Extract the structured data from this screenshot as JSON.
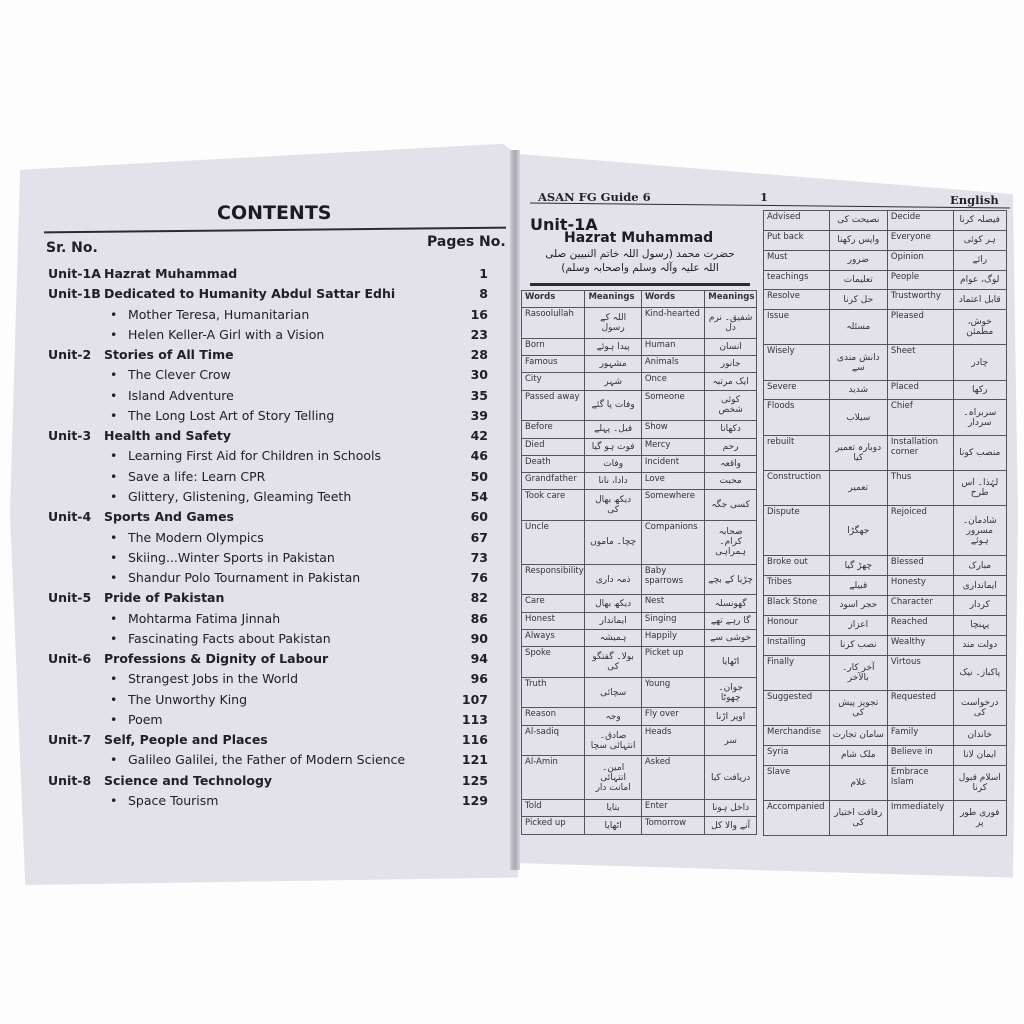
{
  "left_page": {
    "title": "CONTENTS",
    "col_sr": "Sr. No.",
    "col_pages": "Pages No.",
    "entries": [
      {
        "unit": "Unit-1A",
        "title": "Hazrat Muhammad",
        "page": "1"
      },
      {
        "unit": "Unit-1B",
        "title": "Dedicated to Humanity Abdul Sattar Edhi",
        "page": "8"
      },
      {
        "unit": "",
        "title": "Mother Teresa, Humanitarian",
        "page": "16"
      },
      {
        "unit": "",
        "title": "Helen Keller-A Girl with a Vision",
        "page": "23"
      },
      {
        "unit": "Unit-2",
        "title": "Stories of All Time",
        "page": "28"
      },
      {
        "unit": "",
        "title": "The Clever Crow",
        "page": "30"
      },
      {
        "unit": "",
        "title": "Island Adventure",
        "page": "35"
      },
      {
        "unit": "",
        "title": "The Long Lost Art of Story Telling",
        "page": "39"
      },
      {
        "unit": "Unit-3",
        "title": "Health and Safety",
        "page": "42"
      },
      {
        "unit": "",
        "title": "Learning First Aid for Children in Schools",
        "page": "46"
      },
      {
        "unit": "",
        "title": "Save a life: Learn CPR",
        "page": "50"
      },
      {
        "unit": "",
        "title": "Glittery, Glistening, Gleaming Teeth",
        "page": "54"
      },
      {
        "unit": "Unit-4",
        "title": "Sports And Games",
        "page": "60"
      },
      {
        "unit": "",
        "title": "The Modern Olympics",
        "page": "67"
      },
      {
        "unit": "",
        "title": "Skiing...Winter Sports in Pakistan",
        "page": "73"
      },
      {
        "unit": "",
        "title": "Shandur Polo Tournament in Pakistan",
        "page": "76"
      },
      {
        "unit": "Unit-5",
        "title": "Pride of Pakistan",
        "page": "82"
      },
      {
        "unit": "",
        "title": "Mohtarma Fatima Jinnah",
        "page": "86"
      },
      {
        "unit": "",
        "title": "Fascinating Facts about Pakistan",
        "page": "90"
      },
      {
        "unit": "Unit-6",
        "title": "Professions & Dignity of Labour",
        "page": "94"
      },
      {
        "unit": "",
        "title": "Strangest Jobs in the World",
        "page": "96"
      },
      {
        "unit": "",
        "title": "The Unworthy King",
        "page": "107"
      },
      {
        "unit": "",
        "title": "Poem",
        "page": "113"
      },
      {
        "unit": "Unit-7",
        "title": "Self, People and Places",
        "page": "116"
      },
      {
        "unit": "",
        "title": "Galileo Galilei, the Father of Modern Science",
        "page": "121"
      },
      {
        "unit": "Unit-8",
        "title": "Science and Technology",
        "page": "125"
      },
      {
        "unit": "",
        "title": "Space Tourism",
        "page": "129"
      }
    ]
  },
  "right_page": {
    "book_title": "ASAN FG Guide 6",
    "page_number": "1",
    "subject": "English",
    "unit": "Unit-1A",
    "lesson_title": "Hazrat Muhammad",
    "urdu_title": "حضرت محمد (رسول اللہ خاتم النبیین صلی اللہ علیہ وآلہ وسلم واصحابہ وسلم)",
    "headers": [
      "Words",
      "Meanings",
      "Words",
      "Meanings"
    ],
    "vocab_left": [
      [
        "Rasoolullah",
        "اللہ کے رسول",
        "Kind-hearted",
        "شفیق۔ نرم دل"
      ],
      [
        "Born",
        "پیدا ہوئے",
        "Human",
        "انسان"
      ],
      [
        "Famous",
        "مشہور",
        "Animals",
        "جانور"
      ],
      [
        "City",
        "شہر",
        "Once",
        "ایک مرتبہ"
      ],
      [
        "Passed away",
        "وفات پا گئے",
        "Someone",
        "کوئی شخص"
      ],
      [
        "Before",
        "قبل۔ پہلے",
        "Show",
        "دکھانا"
      ],
      [
        "Died",
        "فوت ہو گیا",
        "Mercy",
        "رحم"
      ],
      [
        "Death",
        "وفات",
        "Incident",
        "واقعہ"
      ],
      [
        "Grandfather",
        "دادا، نانا",
        "Love",
        "محبت"
      ],
      [
        "Took care",
        "دیکھ بھال کی",
        "Somewhere",
        "کسی جگہ"
      ],
      [
        "Uncle",
        "چچا۔ ماموں",
        "Companions",
        "صحابہ کرام۔ ہمراہی"
      ],
      [
        "Responsibility",
        "ذمہ داری",
        "Baby sparrows",
        "چڑیا کے بچے"
      ],
      [
        "Care",
        "دیکھ بھال",
        "Nest",
        "گھونسلہ"
      ],
      [
        "Honest",
        "ایماندار",
        "Singing",
        "گا رہے تھے"
      ],
      [
        "Always",
        "ہمیشہ",
        "Happily",
        "خوشی سے"
      ],
      [
        "Spoke",
        "بولا۔ گفتگو کی",
        "Picket up",
        "اٹھایا"
      ],
      [
        "Truth",
        "سچائی",
        "Young",
        "جوان۔ چھوٹا"
      ],
      [
        "Reason",
        "وجہ",
        "Fly over",
        "اوپر اڑنا"
      ],
      [
        "Al-sadiq",
        "صادق۔ انتہائی سچا",
        "Heads",
        "سر"
      ],
      [
        "Al-Amin",
        "امین۔ انتہائی امانت دار",
        "Asked",
        "دریافت کیا"
      ],
      [
        "Told",
        "بتایا",
        "Enter",
        "داخل ہونا"
      ],
      [
        "Picked up",
        "اٹھایا",
        "Tomorrow",
        "آنے والا کل"
      ]
    ],
    "vocab_right": [
      [
        "Advised",
        "نصیحت کی",
        "Decide",
        "فیصلہ کرنا"
      ],
      [
        "Put back",
        "واپس رکھنا",
        "Everyone",
        "ہر کوئی"
      ],
      [
        "Must",
        "ضرور",
        "Opinion",
        "رائے"
      ],
      [
        "teachings",
        "تعلیمات",
        "People",
        "لوگ، عوام"
      ],
      [
        "Resolve",
        "حل کرنا",
        "Trustworthy",
        "قابل اعتماد"
      ],
      [
        "Issue",
        "مسئلہ",
        "Pleased",
        "خوش، مطمئن"
      ],
      [
        "Wisely",
        "دانش مندی سے",
        "Sheet",
        "چادر"
      ],
      [
        "Severe",
        "شدید",
        "Placed",
        "رکھا"
      ],
      [
        "Floods",
        "سیلاب",
        "Chief",
        "سربراہ۔ سردار"
      ],
      [
        "rebuilt",
        "دوبارہ تعمیر کیا",
        "Installation corner",
        "منصب کونا"
      ],
      [
        "Construction",
        "تعمیر",
        "Thus",
        "لہٰذا۔ اس طرح"
      ],
      [
        "Dispute",
        "جھگڑا",
        "Rejoiced",
        "شادمان۔ مسرور ہوئے"
      ],
      [
        "Broke out",
        "چھڑ گیا",
        "Blessed",
        "مبارک"
      ],
      [
        "Tribes",
        "قبیلے",
        "Honesty",
        "ایمانداری"
      ],
      [
        "Black Stone",
        "حجر اسود",
        "Character",
        "کردار"
      ],
      [
        "Honour",
        "اعزاز",
        "Reached",
        "پہنچا"
      ],
      [
        "Installing",
        "نصب کرنا",
        "Wealthy",
        "دولت مند"
      ],
      [
        "Finally",
        "آخر کار۔ بالآخر",
        "Virtous",
        "پاکباز۔ نیک"
      ],
      [
        "Suggested",
        "تجویز پیش کی",
        "Requested",
        "درخواست کی"
      ],
      [
        "Merchandise",
        "سامان تجارت",
        "Family",
        "خاندان"
      ],
      [
        "Syria",
        "ملک شام",
        "Believe in",
        "ایمان لانا"
      ],
      [
        "Slave",
        "غلام",
        "Embrace Islam",
        "اسلام قبول کرنا"
      ],
      [
        "Accompanied",
        "رفاقت اختیار کی",
        "Immediately",
        "فوری طور پر"
      ]
    ]
  }
}
